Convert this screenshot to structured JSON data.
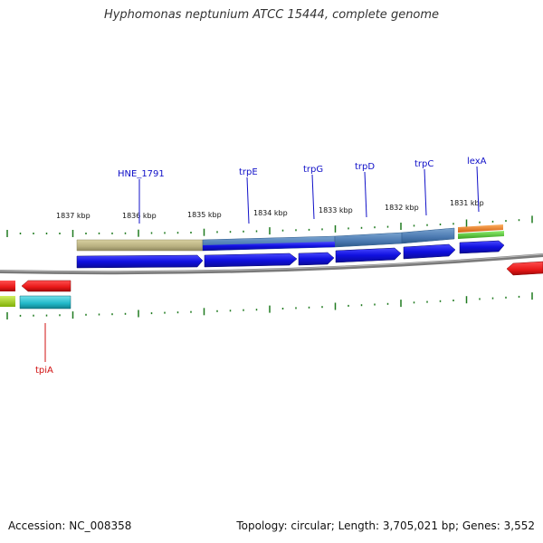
{
  "title": "Hyphomonas neptunium ATCC 15444, complete genome",
  "footer": {
    "accession": "Accession: NC_008358",
    "summary": "Topology: circular; Length: 3,705,021 bp; Genes: 3,552"
  },
  "colors": {
    "backbone": "#8a8a8a",
    "tick": "#1f7a1f",
    "gene_blue": "#1010e0",
    "gene_label_blue": "#1010c8",
    "gene_label_red": "#d01010",
    "operon_olive": "#b8b080",
    "operon_steel": "#4a78b0",
    "red_feature": "#e81818",
    "cyan_feature": "#20b8c8",
    "orange_feature": "#f08020",
    "green_feature": "#50c830",
    "lime_feature": "#a8d810"
  },
  "ruler": {
    "labels": [
      "1837 kbp",
      "1836 kbp",
      "1835 kbp",
      "1834 kbp",
      "1833 kbp",
      "1832 kbp",
      "1831 kbp"
    ]
  },
  "gene_labels": [
    "HNE_1791",
    "trpE",
    "trpG",
    "trpD",
    "trpC",
    "lexA",
    "tpiA"
  ]
}
